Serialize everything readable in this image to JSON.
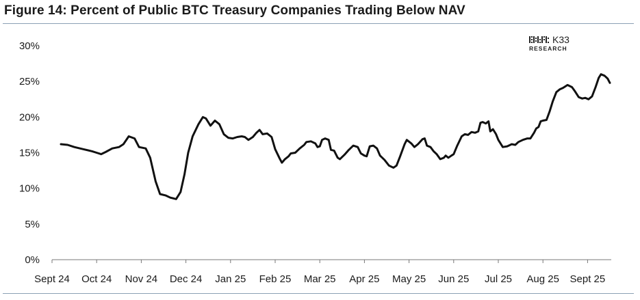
{
  "title": "Figure 14: Percent of Public BTC Treasury Companies Trading Below NAV",
  "logo": {
    "name": "K33",
    "sub": "RESEARCH",
    "icon": "k33-logo-icon"
  },
  "colors": {
    "line": "#111111",
    "rule": "#8aa0b4",
    "text": "#1a1a1a"
  },
  "chart_data": {
    "type": "line",
    "title": "Figure 14: Percent of Public BTC Treasury Companies Trading Below NAV",
    "xlabel": "",
    "ylabel": "",
    "ylim": [
      0,
      30
    ],
    "yticks": [
      "0%",
      "5%",
      "10%",
      "15%",
      "20%",
      "25%",
      "30%"
    ],
    "x_ticks": [
      "Sept 24",
      "Oct 24",
      "Nov 24",
      "Dec 24",
      "Jan 25",
      "Feb 25",
      "Mar 25",
      "Apr 25",
      "May 25",
      "Jun 25",
      "Jul 25",
      "Aug 25",
      "Sept 25"
    ],
    "grid": false,
    "legend": "none",
    "series": [
      {
        "points": [
          [
            0.2,
            16.2
          ],
          [
            0.35,
            16.1
          ],
          [
            0.5,
            15.8
          ],
          [
            0.7,
            15.5
          ],
          [
            0.9,
            15.2
          ],
          [
            1.0,
            15.0
          ],
          [
            1.1,
            14.8
          ],
          [
            1.2,
            15.1
          ],
          [
            1.35,
            15.6
          ],
          [
            1.5,
            15.8
          ],
          [
            1.6,
            16.2
          ],
          [
            1.72,
            17.3
          ],
          [
            1.85,
            17.0
          ],
          [
            1.95,
            15.8
          ],
          [
            2.1,
            15.6
          ],
          [
            2.2,
            14.3
          ],
          [
            2.32,
            11.0
          ],
          [
            2.42,
            9.2
          ],
          [
            2.55,
            9.0
          ],
          [
            2.65,
            8.7
          ],
          [
            2.78,
            8.5
          ],
          [
            2.88,
            9.5
          ],
          [
            2.97,
            12.0
          ],
          [
            3.05,
            15.0
          ],
          [
            3.15,
            17.3
          ],
          [
            3.28,
            19.0
          ],
          [
            3.38,
            20.0
          ],
          [
            3.45,
            19.8
          ],
          [
            3.55,
            18.8
          ],
          [
            3.65,
            19.5
          ],
          [
            3.75,
            19.0
          ],
          [
            3.85,
            17.6
          ],
          [
            3.95,
            17.1
          ],
          [
            4.05,
            17.0
          ],
          [
            4.15,
            17.2
          ],
          [
            4.25,
            17.3
          ],
          [
            4.32,
            17.2
          ],
          [
            4.4,
            16.8
          ],
          [
            4.5,
            17.2
          ],
          [
            4.58,
            17.8
          ],
          [
            4.65,
            18.2
          ],
          [
            4.72,
            17.6
          ],
          [
            4.82,
            17.7
          ],
          [
            4.92,
            17.2
          ],
          [
            5.0,
            15.5
          ],
          [
            5.1,
            14.2
          ],
          [
            5.15,
            13.6
          ],
          [
            5.22,
            14.1
          ],
          [
            5.3,
            14.5
          ],
          [
            5.35,
            14.9
          ],
          [
            5.45,
            15.0
          ],
          [
            5.55,
            15.6
          ],
          [
            5.65,
            16.1
          ],
          [
            5.7,
            16.5
          ],
          [
            5.8,
            16.6
          ],
          [
            5.9,
            16.3
          ],
          [
            5.95,
            15.8
          ],
          [
            6.0,
            15.9
          ],
          [
            6.05,
            16.8
          ],
          [
            6.12,
            17.0
          ],
          [
            6.2,
            16.8
          ],
          [
            6.25,
            15.4
          ],
          [
            6.32,
            15.3
          ],
          [
            6.4,
            14.3
          ],
          [
            6.45,
            14.1
          ],
          [
            6.55,
            14.7
          ],
          [
            6.65,
            15.4
          ],
          [
            6.75,
            16.0
          ],
          [
            6.85,
            15.8
          ],
          [
            6.92,
            14.9
          ],
          [
            7.0,
            14.6
          ],
          [
            7.05,
            14.5
          ],
          [
            7.12,
            15.9
          ],
          [
            7.2,
            16.0
          ],
          [
            7.28,
            15.6
          ],
          [
            7.35,
            14.6
          ],
          [
            7.45,
            14.0
          ],
          [
            7.55,
            13.2
          ],
          [
            7.65,
            12.9
          ],
          [
            7.72,
            13.2
          ],
          [
            7.8,
            14.5
          ],
          [
            7.9,
            16.2
          ],
          [
            7.95,
            16.8
          ],
          [
            8.05,
            16.3
          ],
          [
            8.12,
            15.8
          ],
          [
            8.2,
            16.2
          ],
          [
            8.3,
            16.9
          ],
          [
            8.35,
            17.0
          ],
          [
            8.4,
            16.0
          ],
          [
            8.48,
            15.8
          ],
          [
            8.55,
            15.2
          ],
          [
            8.62,
            14.8
          ],
          [
            8.7,
            14.1
          ],
          [
            8.78,
            14.3
          ],
          [
            8.82,
            14.6
          ],
          [
            8.88,
            14.3
          ],
          [
            8.95,
            14.6
          ],
          [
            9.0,
            14.8
          ],
          [
            9.08,
            16.0
          ],
          [
            9.18,
            17.3
          ],
          [
            9.25,
            17.6
          ],
          [
            9.32,
            17.5
          ],
          [
            9.4,
            17.9
          ],
          [
            9.48,
            17.8
          ],
          [
            9.55,
            18.0
          ],
          [
            9.6,
            19.2
          ],
          [
            9.65,
            19.3
          ],
          [
            9.72,
            19.1
          ],
          [
            9.78,
            19.4
          ],
          [
            9.82,
            18.0
          ],
          [
            9.88,
            18.3
          ],
          [
            9.95,
            17.6
          ],
          [
            10.0,
            16.8
          ],
          [
            10.1,
            15.8
          ],
          [
            10.2,
            15.9
          ],
          [
            10.3,
            16.2
          ],
          [
            10.38,
            16.1
          ],
          [
            10.45,
            16.5
          ],
          [
            10.55,
            16.8
          ],
          [
            10.65,
            17.0
          ],
          [
            10.72,
            17.0
          ],
          [
            10.8,
            17.8
          ],
          [
            10.85,
            18.4
          ],
          [
            10.9,
            18.6
          ],
          [
            10.95,
            19.4
          ],
          [
            11.0,
            19.5
          ],
          [
            11.08,
            19.6
          ],
          [
            11.15,
            20.8
          ],
          [
            11.22,
            22.2
          ],
          [
            11.3,
            23.5
          ],
          [
            11.38,
            23.9
          ],
          [
            11.45,
            24.1
          ],
          [
            11.55,
            24.5
          ],
          [
            11.65,
            24.2
          ],
          [
            11.72,
            23.6
          ],
          [
            11.8,
            22.8
          ],
          [
            11.88,
            22.6
          ],
          [
            11.95,
            22.7
          ],
          [
            12.02,
            22.5
          ],
          [
            12.1,
            22.9
          ],
          [
            12.18,
            24.2
          ],
          [
            12.25,
            25.5
          ],
          [
            12.3,
            26.0
          ],
          [
            12.38,
            25.8
          ],
          [
            12.45,
            25.4
          ],
          [
            12.5,
            24.8
          ]
        ]
      }
    ]
  }
}
